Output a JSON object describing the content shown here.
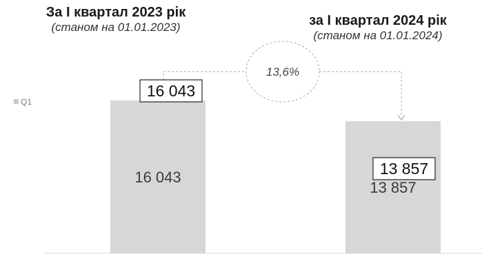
{
  "headers": [
    {
      "title": "За І квартал 2023 рік",
      "subtitle": "(станом на 01.01.2023)"
    },
    {
      "title": "за І квартал 2024 рік",
      "subtitle": "(станом на 01.01.2024)"
    }
  ],
  "chart_data": {
    "type": "bar",
    "categories": [
      "За І квартал 2023 рік",
      "за І квартал 2024 рік"
    ],
    "series": [
      {
        "name": "Q1",
        "values": [
          16043,
          13857
        ]
      }
    ],
    "value_labels": [
      "16 043",
      "13 857"
    ],
    "callout_labels": [
      "16 043",
      "13 857"
    ],
    "change_label": "13,6%",
    "legend": {
      "position": "left",
      "entries": [
        "Q1"
      ]
    },
    "ylim": [
      0,
      19000
    ],
    "grid": false,
    "colors": {
      "bar": "#d7d7d7",
      "connector": "#a8a8a8",
      "text": "#3a3a3a"
    }
  }
}
